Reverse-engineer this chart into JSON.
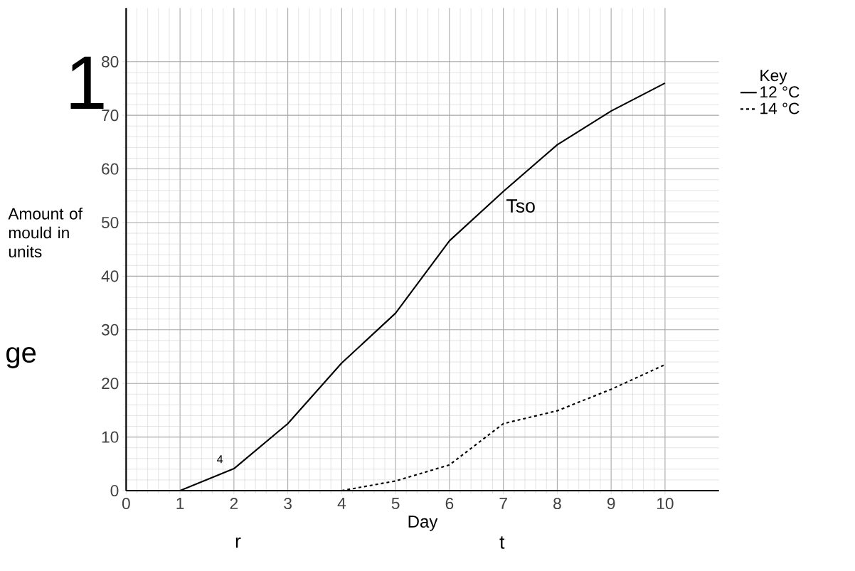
{
  "chart_data": {
    "type": "line",
    "xlabel": "Day",
    "ylabel": "Amount of mould in units",
    "legend_title": "Key",
    "x": [
      1,
      2,
      3,
      4,
      5,
      6,
      7,
      8,
      9,
      10
    ],
    "series": [
      {
        "name": "12 °C",
        "color": "#000000",
        "line_style": "solid",
        "values": [
          0,
          4.1,
          12.5,
          23.8,
          33.1,
          46.6,
          55.8,
          64.5,
          70.8,
          76
        ]
      },
      {
        "name": "14 °C",
        "color": "#000000",
        "line_style": "dashed",
        "values": [
          null,
          null,
          null,
          0,
          1.8,
          4.8,
          12.5,
          14.9,
          18.9,
          23.5
        ]
      }
    ],
    "xlim": [
      0,
      11
    ],
    "ylim": [
      0,
      90
    ],
    "xticks": [
      0,
      1,
      2,
      3,
      4,
      5,
      6,
      7,
      8,
      9,
      10
    ],
    "yticks": [
      0,
      10,
      20,
      30,
      40,
      50,
      60,
      70,
      80
    ],
    "grid": true,
    "legend": "top right",
    "marker": "none",
    "annotations": [
      "1",
      "ge",
      "4",
      "Tso",
      "r",
      "t"
    ]
  }
}
